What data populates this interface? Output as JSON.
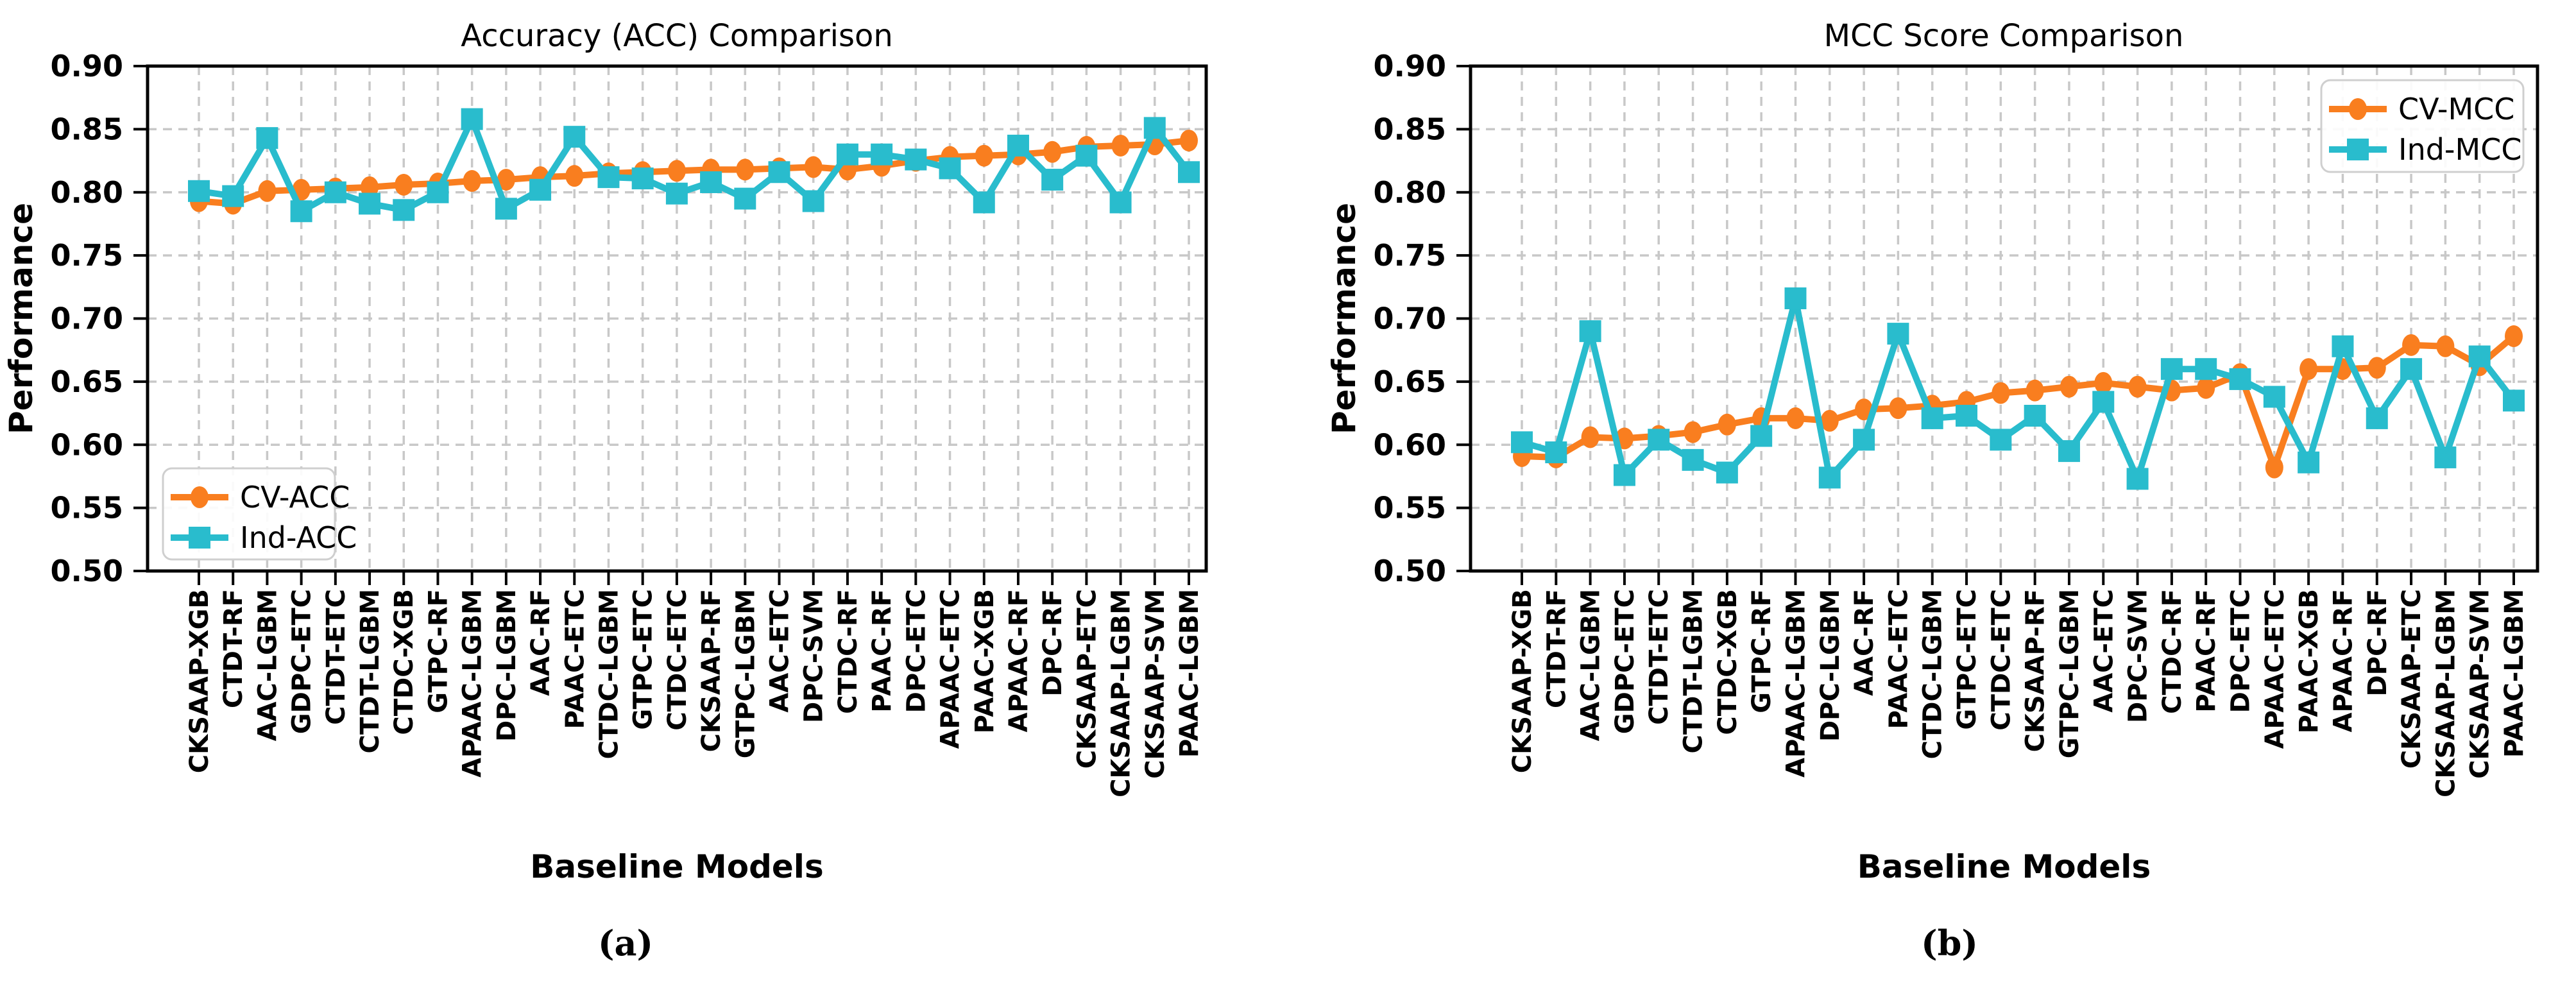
{
  "figure": {
    "background": "#ffffff",
    "accent_orange": "#f97e1f",
    "accent_cyan": "#29bccd"
  },
  "captions": {
    "a": "(a)",
    "b": "(b)"
  },
  "chart_data": [
    {
      "type": "line",
      "title": "Accuracy (ACC) Comparison",
      "xlabel": "Baseline Models",
      "ylabel": "Performance",
      "caption": "(a)",
      "ylim": [
        0.5,
        0.9
      ],
      "yticks": [
        "0.90",
        "0.85",
        "0.80",
        "0.75",
        "0.70",
        "0.65",
        "0.60",
        "0.55",
        "0.50"
      ],
      "grid": true,
      "legend_position": "lower-left",
      "categories": [
        "CKSAAP-XGB",
        "CTDT-RF",
        "AAC-LGBM",
        "GDPC-ETC",
        "CTDT-ETC",
        "CTDT-LGBM",
        "CTDC-XGB",
        "GTPC-RF",
        "APAAC-LGBM",
        "DPC-LGBM",
        "AAC-RF",
        "PAAC-ETC",
        "CTDC-LGBM",
        "GTPC-ETC",
        "CTDC-ETC",
        "CKSAAP-RF",
        "GTPC-LGBM",
        "AAC-ETC",
        "DPC-SVM",
        "CTDC-RF",
        "PAAC-RF",
        "DPC-ETC",
        "APAAC-ETC",
        "PAAC-XGB",
        "APAAC-RF",
        "DPC-RF",
        "CKSAAP-ETC",
        "CKSAAP-LGBM",
        "CKSAAP-SVM",
        "PAAC-LGBM"
      ],
      "series": [
        {
          "name": "CV-ACC",
          "color": "#f97e1f",
          "marker": "circle",
          "values": [
            0.793,
            0.791,
            0.801,
            0.802,
            0.803,
            0.804,
            0.806,
            0.807,
            0.809,
            0.81,
            0.812,
            0.813,
            0.815,
            0.816,
            0.817,
            0.818,
            0.818,
            0.819,
            0.82,
            0.818,
            0.821,
            0.825,
            0.828,
            0.829,
            0.83,
            0.832,
            0.836,
            0.837,
            0.838,
            0.841
          ]
        },
        {
          "name": "Ind-ACC",
          "color": "#29bccd",
          "marker": "square",
          "values": [
            0.801,
            0.797,
            0.843,
            0.785,
            0.8,
            0.791,
            0.786,
            0.8,
            0.858,
            0.787,
            0.802,
            0.844,
            0.812,
            0.811,
            0.799,
            0.808,
            0.795,
            0.816,
            0.793,
            0.83,
            0.83,
            0.826,
            0.819,
            0.792,
            0.837,
            0.81,
            0.829,
            0.792,
            0.851,
            0.816
          ]
        }
      ]
    },
    {
      "type": "line",
      "title": "MCC Score Comparison",
      "xlabel": "Baseline Models",
      "ylabel": "Performance",
      "caption": "(b)",
      "ylim": [
        0.5,
        0.9
      ],
      "yticks": [
        "0.90",
        "0.85",
        "0.80",
        "0.75",
        "0.70",
        "0.65",
        "0.60",
        "0.55",
        "0.50"
      ],
      "grid": true,
      "legend_position": "upper-right",
      "categories": [
        "CKSAAP-XGB",
        "CTDT-RF",
        "AAC-LGBM",
        "GDPC-ETC",
        "CTDT-ETC",
        "CTDT-LGBM",
        "CTDC-XGB",
        "GTPC-RF",
        "APAAC-LGBM",
        "DPC-LGBM",
        "AAC-RF",
        "PAAC-ETC",
        "CTDC-LGBM",
        "GTPC-ETC",
        "CTDC-ETC",
        "CKSAAP-RF",
        "GTPC-LGBM",
        "AAC-ETC",
        "DPC-SVM",
        "CTDC-RF",
        "PAAC-RF",
        "DPC-ETC",
        "APAAC-ETC",
        "PAAC-XGB",
        "APAAC-RF",
        "DPC-RF",
        "CKSAAP-ETC",
        "CKSAAP-LGBM",
        "CKSAAP-SVM",
        "PAAC-LGBM"
      ],
      "series": [
        {
          "name": "CV-MCC",
          "color": "#f97e1f",
          "marker": "circle",
          "values": [
            0.591,
            0.59,
            0.606,
            0.605,
            0.607,
            0.61,
            0.616,
            0.621,
            0.621,
            0.619,
            0.628,
            0.629,
            0.631,
            0.634,
            0.641,
            0.643,
            0.646,
            0.649,
            0.646,
            0.643,
            0.645,
            0.656,
            0.582,
            0.66,
            0.66,
            0.661,
            0.679,
            0.678,
            0.663,
            0.686
          ]
        },
        {
          "name": "Ind-MCC",
          "color": "#29bccd",
          "marker": "square",
          "values": [
            0.602,
            0.594,
            0.69,
            0.576,
            0.604,
            0.588,
            0.578,
            0.607,
            0.716,
            0.574,
            0.604,
            0.688,
            0.621,
            0.623,
            0.604,
            0.623,
            0.595,
            0.634,
            0.573,
            0.66,
            0.66,
            0.652,
            0.638,
            0.586,
            0.678,
            0.621,
            0.66,
            0.59,
            0.67,
            0.635
          ]
        }
      ]
    }
  ]
}
